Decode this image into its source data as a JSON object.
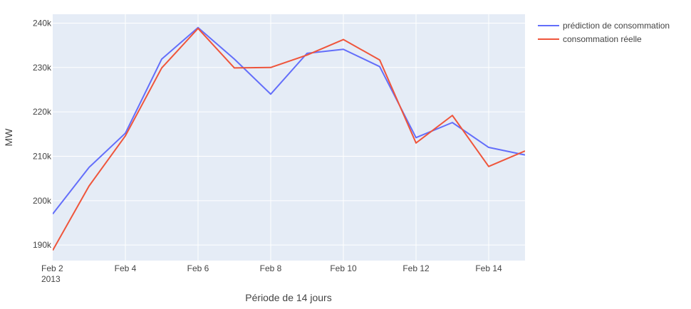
{
  "chart_data": {
    "type": "line",
    "xlabel": "Période de 14 jours",
    "ylabel": "MW",
    "x": [
      "2013-02-02",
      "2013-02-03",
      "2013-02-04",
      "2013-02-05",
      "2013-02-06",
      "2013-02-07",
      "2013-02-08",
      "2013-02-09",
      "2013-02-10",
      "2013-02-11",
      "2013-02-12",
      "2013-02-13",
      "2013-02-14",
      "2013-02-15"
    ],
    "x_ticks": [
      {
        "date": "2013-02-02",
        "label": "Feb 2",
        "sublabel": "2013"
      },
      {
        "date": "2013-02-04",
        "label": "Feb 4"
      },
      {
        "date": "2013-02-06",
        "label": "Feb 6"
      },
      {
        "date": "2013-02-08",
        "label": "Feb 8"
      },
      {
        "date": "2013-02-10",
        "label": "Feb 10"
      },
      {
        "date": "2013-02-12",
        "label": "Feb 12"
      },
      {
        "date": "2013-02-14",
        "label": "Feb 14"
      }
    ],
    "xlim": [
      "2013-02-02",
      "2013-02-15"
    ],
    "ylim": [
      186500,
      242000
    ],
    "y_ticks": [
      {
        "value": 190000,
        "label": "190k"
      },
      {
        "value": 200000,
        "label": "200k"
      },
      {
        "value": 210000,
        "label": "210k"
      },
      {
        "value": 220000,
        "label": "220k"
      },
      {
        "value": 230000,
        "label": "230k"
      },
      {
        "value": 240000,
        "label": "240k"
      }
    ],
    "grid": true,
    "legend_position": "top-right",
    "series": [
      {
        "name": "prédiction de consommation",
        "color": "#636efa",
        "values": [
          197000,
          207500,
          215200,
          231900,
          239000,
          231900,
          224000,
          233200,
          234100,
          230200,
          214200,
          217600,
          212000,
          210300
        ]
      },
      {
        "name": "consommation réelle",
        "color": "#EF553B",
        "values": [
          188800,
          203300,
          214600,
          229900,
          238800,
          229900,
          230000,
          232800,
          236300,
          231700,
          213000,
          219200,
          207700,
          211200
        ]
      }
    ]
  }
}
